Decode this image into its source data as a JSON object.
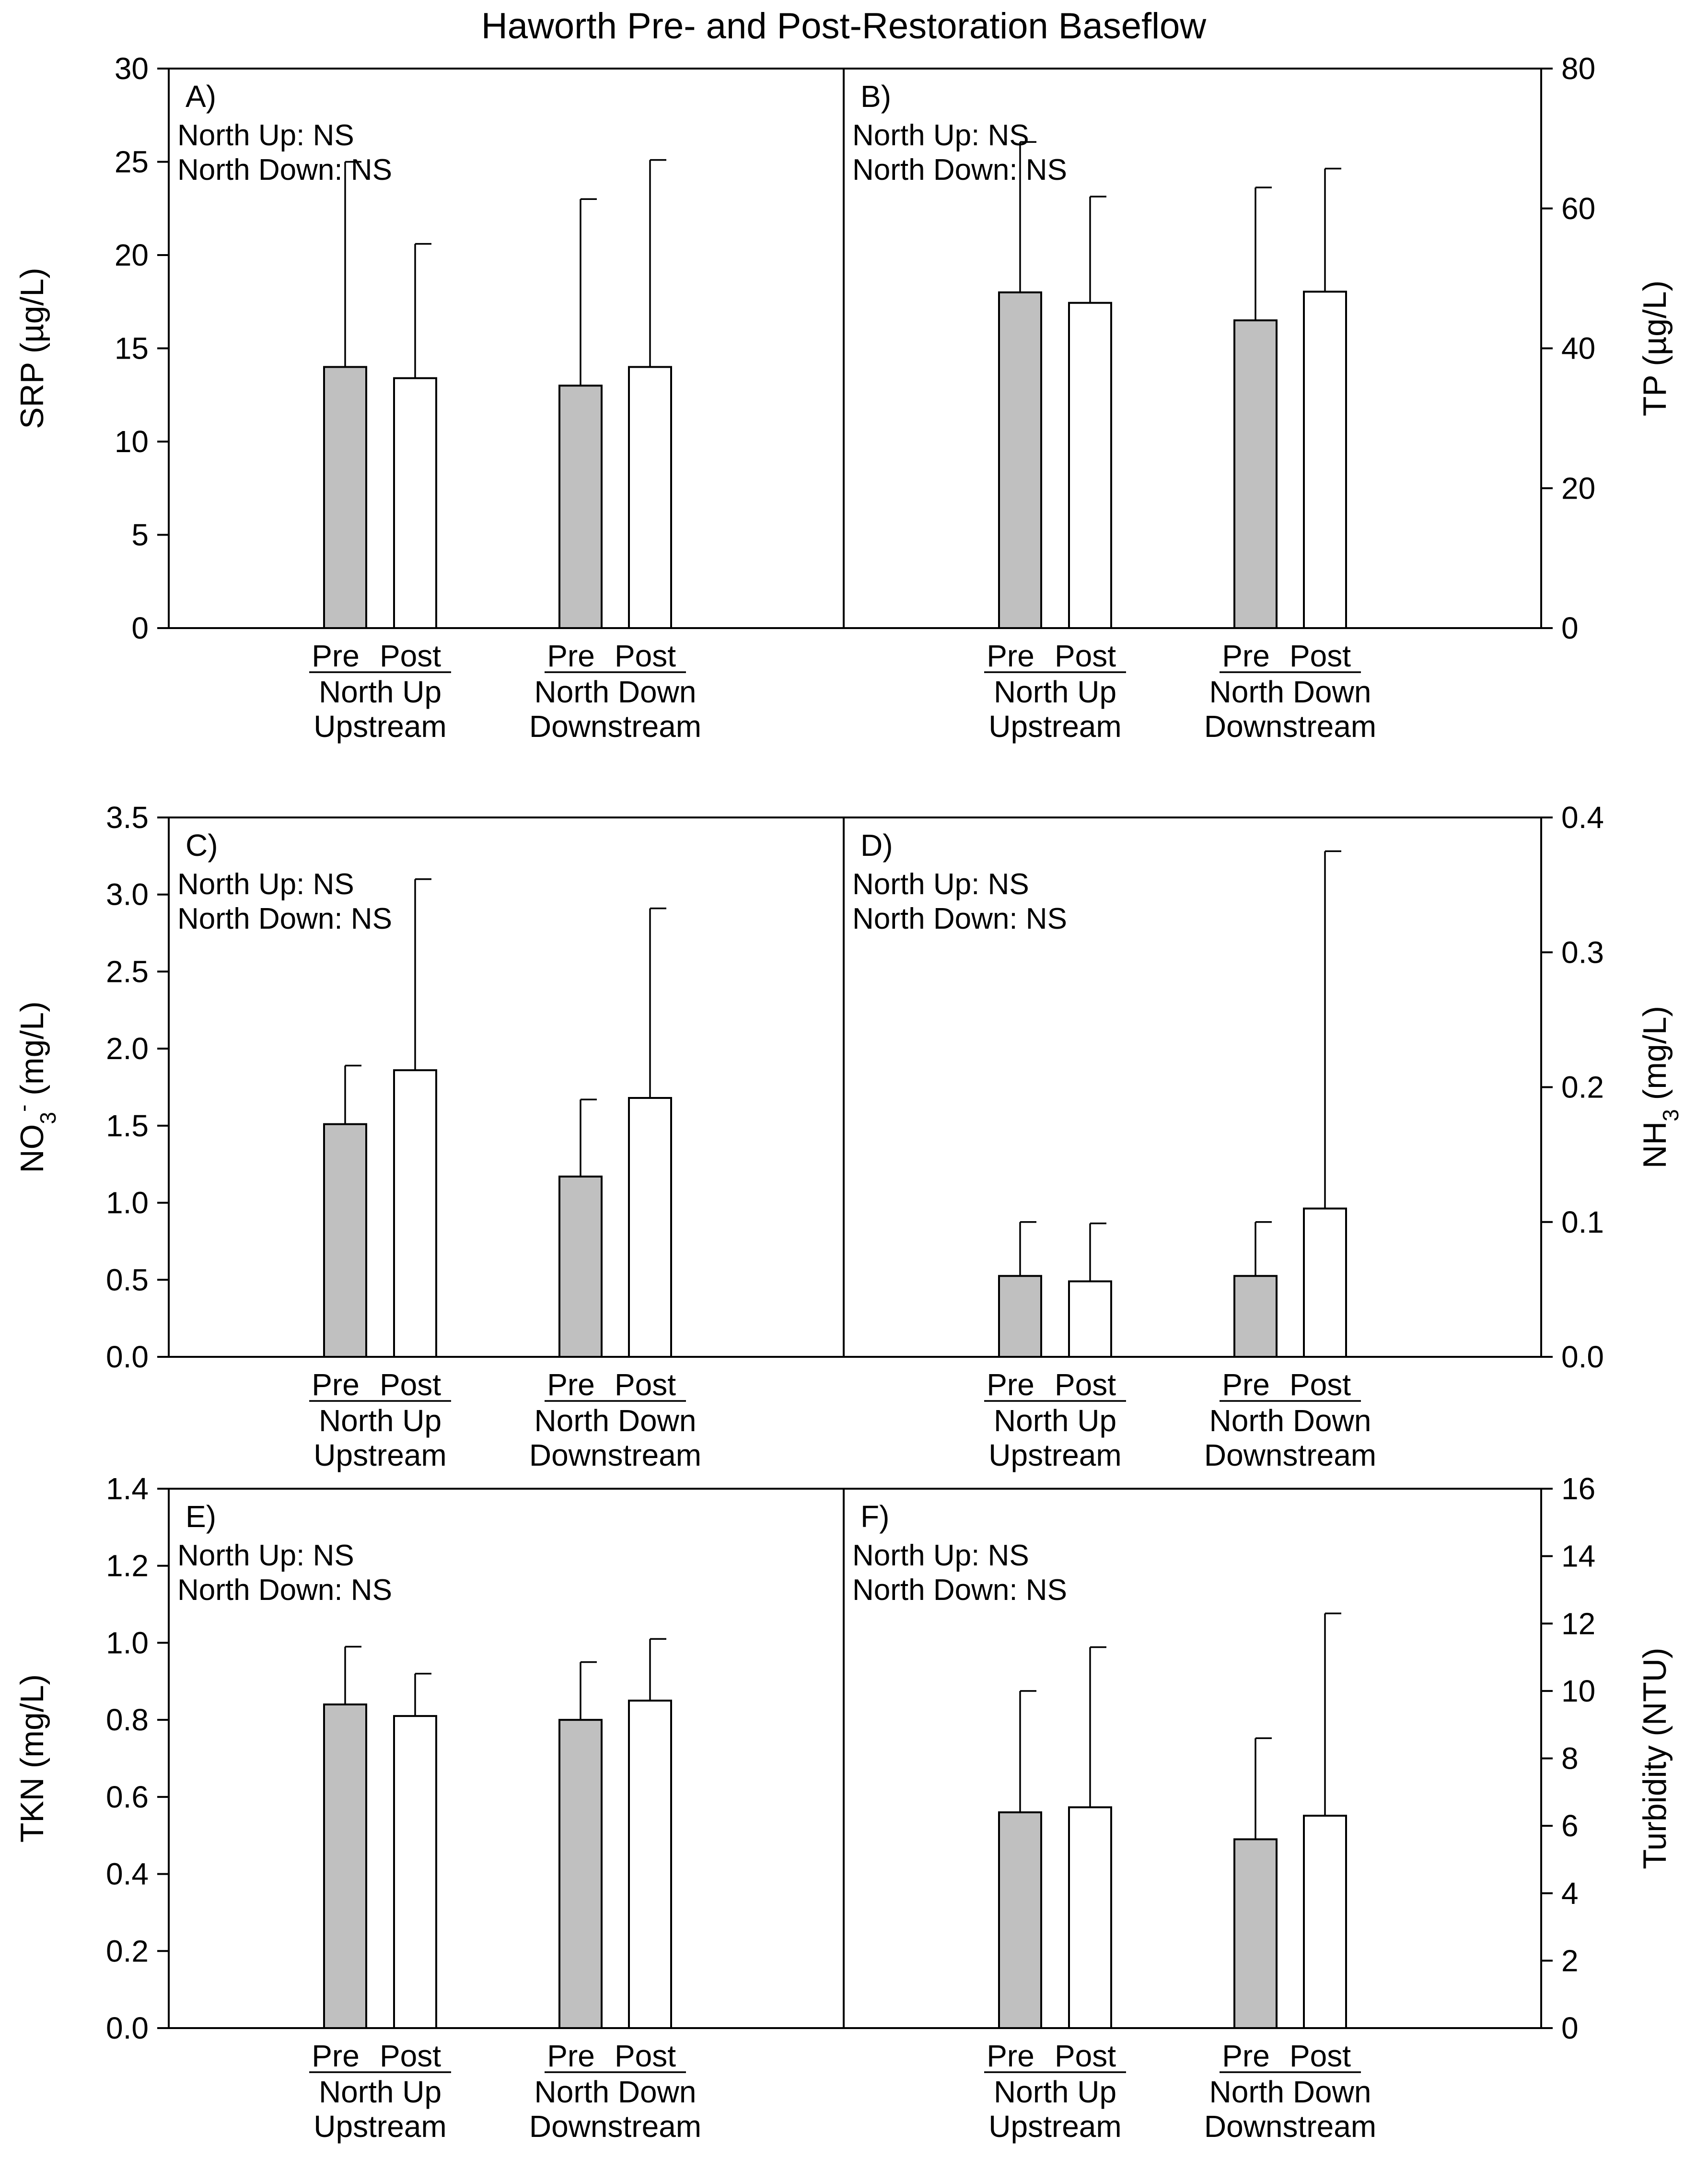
{
  "title": "Haworth Pre- and Post-Restoration Baseflow",
  "colors": {
    "pre": "#c0c0c0",
    "post": "#ffffff",
    "axis": "#000000"
  },
  "chart_data": [
    {
      "type": "bar",
      "panel": "A)",
      "row": 0,
      "side": "left",
      "ylabel": {
        "main": "SRP (µg/L)"
      },
      "ylim": [
        0,
        30
      ],
      "ticks": [
        "0",
        "5",
        "10",
        "15",
        "20",
        "25",
        "30"
      ],
      "stats": [
        "North Up: NS",
        "North Down: NS"
      ],
      "groups": [
        {
          "period_labels": [
            "Pre",
            "Post"
          ],
          "labels": [
            "North Up",
            "Upstream"
          ],
          "values": [
            14.0,
            13.4
          ],
          "err_upper": [
            25.0,
            20.6
          ]
        },
        {
          "period_labels": [
            "Pre",
            "Post"
          ],
          "labels": [
            "North Down",
            "Downstream"
          ],
          "values": [
            13.0,
            14.0
          ],
          "err_upper": [
            23.0,
            25.1
          ]
        }
      ]
    },
    {
      "type": "bar",
      "panel": "B)",
      "row": 0,
      "side": "right",
      "ylabel": {
        "main": "TP (µg/L)"
      },
      "ylim": [
        0,
        80
      ],
      "ticks": [
        "0",
        "20",
        "40",
        "60",
        "80"
      ],
      "stats": [
        "North Up: NS",
        "North Down: NS"
      ],
      "groups": [
        {
          "period_labels": [
            "Pre",
            "Post"
          ],
          "labels": [
            "North Up",
            "Upstream"
          ],
          "values": [
            48.0,
            46.5
          ],
          "err_upper": [
            69.5,
            61.7
          ]
        },
        {
          "period_labels": [
            "Pre",
            "Post"
          ],
          "labels": [
            "North Down",
            "Downstream"
          ],
          "values": [
            44.0,
            48.1
          ],
          "err_upper": [
            63.0,
            65.7
          ]
        }
      ]
    },
    {
      "type": "bar",
      "panel": "C)",
      "row": 1,
      "side": "left",
      "ylabel": {
        "main": "NO",
        "sub": "3",
        "sup": "-",
        "unit": " (mg/L)"
      },
      "ylim": [
        0,
        3.5
      ],
      "ticks": [
        "0.0",
        "0.5",
        "1.0",
        "1.5",
        "2.0",
        "2.5",
        "3.0",
        "3.5"
      ],
      "stats": [
        "North Up: NS",
        "North Down: NS"
      ],
      "groups": [
        {
          "period_labels": [
            "Pre",
            "Post"
          ],
          "labels": [
            "North Up",
            "Upstream"
          ],
          "values": [
            1.51,
            1.86
          ],
          "err_upper": [
            1.89,
            3.1
          ]
        },
        {
          "period_labels": [
            "Pre",
            "Post"
          ],
          "labels": [
            "North Down",
            "Downstream"
          ],
          "values": [
            1.17,
            1.68
          ],
          "err_upper": [
            1.67,
            2.91
          ]
        }
      ]
    },
    {
      "type": "bar",
      "panel": "D)",
      "row": 1,
      "side": "right",
      "ylabel": {
        "main": "NH",
        "sub": "3",
        "unit": " (mg/L)"
      },
      "ylim": [
        0,
        0.4
      ],
      "ticks": [
        "0.0",
        "0.1",
        "0.2",
        "0.3",
        "0.4"
      ],
      "stats": [
        "North Up: NS",
        "North Down: NS"
      ],
      "groups": [
        {
          "period_labels": [
            "Pre",
            "Post"
          ],
          "labels": [
            "North Up",
            "Upstream"
          ],
          "values": [
            0.06,
            0.056
          ],
          "err_upper": [
            0.1,
            0.099
          ]
        },
        {
          "period_labels": [
            "Pre",
            "Post"
          ],
          "labels": [
            "North Down",
            "Downstream"
          ],
          "values": [
            0.06,
            0.11
          ],
          "err_upper": [
            0.1,
            0.375
          ]
        }
      ]
    },
    {
      "type": "bar",
      "panel": "E)",
      "row": 2,
      "side": "left",
      "ylabel": {
        "main": "TKN (mg/L)"
      },
      "ylim": [
        0,
        1.4
      ],
      "ticks": [
        "0.0",
        "0.2",
        "0.4",
        "0.6",
        "0.8",
        "1.0",
        "1.2",
        "1.4"
      ],
      "stats": [
        "North Up: NS",
        "North Down: NS"
      ],
      "groups": [
        {
          "period_labels": [
            "Pre",
            "Post"
          ],
          "labels": [
            "North Up",
            "Upstream"
          ],
          "values": [
            0.84,
            0.81
          ],
          "err_upper": [
            0.99,
            0.92
          ]
        },
        {
          "period_labels": [
            "Pre",
            "Post"
          ],
          "labels": [
            "North Down",
            "Downstream"
          ],
          "values": [
            0.8,
            0.85
          ],
          "err_upper": [
            0.95,
            1.01
          ]
        }
      ]
    },
    {
      "type": "bar",
      "panel": "F)",
      "row": 2,
      "side": "right",
      "ylabel": {
        "main": "Turbidity (NTU)"
      },
      "ylim": [
        0,
        16
      ],
      "ticks": [
        "0",
        "2",
        "4",
        "6",
        "8",
        "10",
        "12",
        "14",
        "16"
      ],
      "stats": [
        "North Up: NS",
        "North Down: NS"
      ],
      "groups": [
        {
          "period_labels": [
            "Pre",
            "Post"
          ],
          "labels": [
            "North Up",
            "Upstream"
          ],
          "values": [
            6.4,
            6.55
          ],
          "err_upper": [
            10.0,
            11.3
          ]
        },
        {
          "period_labels": [
            "Pre",
            "Post"
          ],
          "labels": [
            "North Down",
            "Downstream"
          ],
          "values": [
            5.6,
            6.3
          ],
          "err_upper": [
            8.6,
            12.3
          ]
        }
      ]
    }
  ]
}
